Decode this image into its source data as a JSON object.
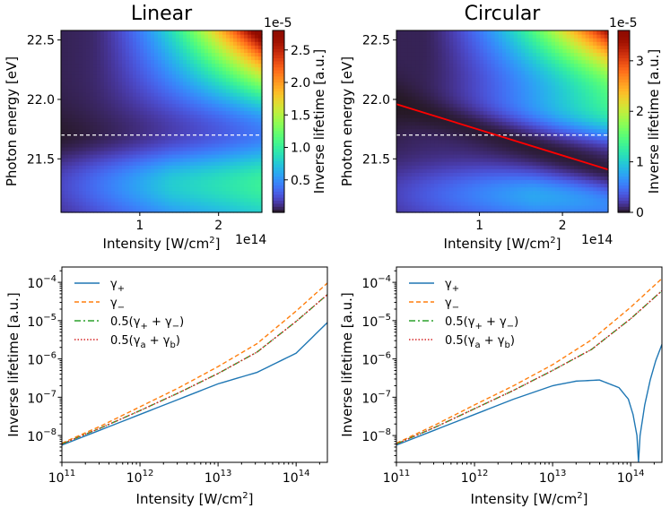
{
  "chart_data": [
    {
      "type": "heatmap",
      "title": "Linear",
      "xlabel": "Intensity [W/cm$^2$]",
      "xlabel_text": "Intensity [W/cm",
      "xlabel_sup": "2",
      "xlabel_end": "]",
      "ylabel": "Photon energy [eV]",
      "x_offset_text": "1e14",
      "xlim": [
        0,
        2.55
      ],
      "ylim": [
        21.05,
        22.58
      ],
      "xticks": [
        {
          "v": 1,
          "label": "1"
        },
        {
          "v": 2,
          "label": "2"
        }
      ],
      "yticks": [
        {
          "v": 21.5,
          "label": "21.5"
        },
        {
          "v": 22.0,
          "label": "22.0"
        },
        {
          "v": 22.5,
          "label": "22.5"
        }
      ],
      "dashed_line_y": 21.7,
      "colorbar": {
        "label": "Inverse lifetime [a.u.]",
        "offset_text": "1e-5",
        "range": [
          0,
          2.8
        ],
        "ticks": [
          "0.5",
          "1.0",
          "1.5",
          "2.0",
          "2.5"
        ],
        "tick_values": [
          0.5,
          1.0,
          1.5,
          2.0,
          2.5
        ],
        "colormap": "turbo"
      }
    },
    {
      "type": "heatmap",
      "title": "Circular",
      "xlabel": "Intensity [W/cm$^2$]",
      "xlabel_text": "Intensity [W/cm",
      "xlabel_sup": "2",
      "xlabel_end": "]",
      "ylabel": "Photon energy [eV]",
      "x_offset_text": "1e14",
      "xlim": [
        0,
        2.55
      ],
      "ylim": [
        21.05,
        22.58
      ],
      "xticks": [
        {
          "v": 1,
          "label": "1"
        },
        {
          "v": 2,
          "label": "2"
        }
      ],
      "yticks": [
        {
          "v": 21.5,
          "label": "21.5"
        },
        {
          "v": 22.0,
          "label": "22.0"
        },
        {
          "v": 22.5,
          "label": "22.5"
        }
      ],
      "dashed_line_y": 21.7,
      "red_line": {
        "x": [
          0,
          2.55
        ],
        "y": [
          21.96,
          21.41
        ]
      },
      "colorbar": {
        "label": "Inverse lifetime [a.u.]",
        "offset_text": "1e-5",
        "range": [
          0,
          3.6
        ],
        "ticks": [
          "0",
          "1",
          "2",
          "3"
        ],
        "tick_values": [
          0,
          1,
          2,
          3
        ],
        "colormap": "turbo"
      }
    },
    {
      "type": "line",
      "xscale": "log",
      "yscale": "log",
      "xlabel": "Intensity [W/cm$^2$]",
      "xlabel_text": "Intensity [W/cm",
      "xlabel_sup": "2",
      "xlabel_end": "]",
      "ylabel": "Inverse lifetime [a.u.]",
      "xlim_log10": [
        11,
        14.4
      ],
      "ylim_log10": [
        -8.7,
        -3.6
      ],
      "xticks": [
        {
          "e": 11,
          "label": "10",
          "sup": "11"
        },
        {
          "e": 12,
          "label": "10",
          "sup": "12"
        },
        {
          "e": 13,
          "label": "10",
          "sup": "13"
        },
        {
          "e": 14,
          "label": "10",
          "sup": "14"
        }
      ],
      "yticks": [
        {
          "e": -8,
          "label": "10",
          "sup": "−8"
        },
        {
          "e": -7,
          "label": "10",
          "sup": "−7"
        },
        {
          "e": -6,
          "label": "10",
          "sup": "−6"
        },
        {
          "e": -5,
          "label": "10",
          "sup": "−5"
        },
        {
          "e": -4,
          "label": "10",
          "sup": "−4"
        }
      ],
      "legend": {
        "placement": "top-left",
        "entries": [
          {
            "pre": "γ",
            "sub": "+",
            "post": ""
          },
          {
            "pre": "γ",
            "sub": "−",
            "post": ""
          },
          {
            "pre": "0.5(γ",
            "sub": "+",
            "mid": " + γ",
            "sub2": "−",
            "post": ")"
          },
          {
            "pre": "0.5(γ",
            "sub": "a",
            "mid": " + γ",
            "sub2": "b",
            "post": ")"
          }
        ]
      },
      "series": [
        {
          "name": "γ+",
          "color": "#1f77b4",
          "style": "solid",
          "x_log10": [
            11,
            11.5,
            12,
            12.5,
            13,
            13.5,
            14,
            14.4
          ],
          "y_log10": [
            -8.25,
            -7.85,
            -7.45,
            -7.05,
            -6.65,
            -6.35,
            -5.85,
            -5.05
          ]
        },
        {
          "name": "γ−",
          "color": "#ff7f0e",
          "style": "dashed",
          "x_log10": [
            11,
            11.5,
            12,
            12.5,
            13,
            13.5,
            14,
            14.4
          ],
          "y_log10": [
            -8.2,
            -7.75,
            -7.25,
            -6.75,
            -6.2,
            -5.6,
            -4.75,
            -4.02
          ]
        },
        {
          "name": "0.5(γ+ + γ−)",
          "color": "#2ca02c",
          "style": "dashdot",
          "x_log10": [
            11,
            11.5,
            12,
            12.5,
            13,
            13.5,
            14,
            14.4
          ],
          "y_log10": [
            -8.22,
            -7.8,
            -7.35,
            -6.88,
            -6.38,
            -5.82,
            -5.02,
            -4.32
          ]
        },
        {
          "name": "0.5(γa + γb)",
          "color": "#d62728",
          "style": "dotted",
          "x_log10": [
            11,
            11.5,
            12,
            12.5,
            13,
            13.5,
            14,
            14.4
          ],
          "y_log10": [
            -8.22,
            -7.8,
            -7.35,
            -6.88,
            -6.38,
            -5.82,
            -5.02,
            -4.32
          ]
        }
      ]
    },
    {
      "type": "line",
      "xscale": "log",
      "yscale": "log",
      "xlabel": "Intensity [W/cm$^2$]",
      "xlabel_text": "Intensity [W/cm",
      "xlabel_sup": "2",
      "xlabel_end": "]",
      "ylabel": "Inverse lifetime [a.u.]",
      "xlim_log10": [
        11,
        14.4
      ],
      "ylim_log10": [
        -8.7,
        -3.6
      ],
      "xticks": [
        {
          "e": 11,
          "label": "10",
          "sup": "11"
        },
        {
          "e": 12,
          "label": "10",
          "sup": "12"
        },
        {
          "e": 13,
          "label": "10",
          "sup": "13"
        },
        {
          "e": 14,
          "label": "10",
          "sup": "14"
        }
      ],
      "yticks": [
        {
          "e": -8,
          "label": "10",
          "sup": "−8"
        },
        {
          "e": -7,
          "label": "10",
          "sup": "−7"
        },
        {
          "e": -6,
          "label": "10",
          "sup": "−6"
        },
        {
          "e": -5,
          "label": "10",
          "sup": "−5"
        },
        {
          "e": -4,
          "label": "10",
          "sup": "−4"
        }
      ],
      "legend": {
        "placement": "top-left",
        "entries": [
          {
            "pre": "γ",
            "sub": "+",
            "post": ""
          },
          {
            "pre": "γ",
            "sub": "−",
            "post": ""
          },
          {
            "pre": "0.5(γ",
            "sub": "+",
            "mid": " + γ",
            "sub2": "−",
            "post": ")"
          },
          {
            "pre": "0.5(γ",
            "sub": "a",
            "mid": " + γ",
            "sub2": "b",
            "post": ")"
          }
        ]
      },
      "series": [
        {
          "name": "γ+",
          "color": "#1f77b4",
          "style": "solid",
          "x_log10": [
            11,
            11.5,
            12,
            12.5,
            13,
            13.3,
            13.6,
            13.85,
            13.97,
            14.03,
            14.08,
            14.1,
            14.12,
            14.18,
            14.25,
            14.32,
            14.4
          ],
          "y_log10": [
            -8.25,
            -7.85,
            -7.45,
            -7.05,
            -6.7,
            -6.58,
            -6.55,
            -6.75,
            -7.05,
            -7.45,
            -8.0,
            -8.7,
            -8.0,
            -7.2,
            -6.55,
            -6.05,
            -5.62
          ]
        },
        {
          "name": "γ−",
          "color": "#ff7f0e",
          "style": "dashed",
          "x_log10": [
            11,
            11.5,
            12,
            12.5,
            13,
            13.5,
            14,
            14.4
          ],
          "y_log10": [
            -8.2,
            -7.72,
            -7.2,
            -6.7,
            -6.15,
            -5.5,
            -4.65,
            -3.9
          ]
        },
        {
          "name": "0.5(γ+ + γ−)",
          "color": "#2ca02c",
          "style": "dashdot",
          "x_log10": [
            11,
            11.5,
            12,
            12.5,
            13,
            13.5,
            14,
            14.4
          ],
          "y_log10": [
            -8.22,
            -7.78,
            -7.3,
            -6.82,
            -6.3,
            -5.75,
            -4.95,
            -4.22
          ]
        },
        {
          "name": "0.5(γa + γb)",
          "color": "#d62728",
          "style": "dotted",
          "x_log10": [
            11,
            11.5,
            12,
            12.5,
            13,
            13.5,
            14,
            14.4
          ],
          "y_log10": [
            -8.22,
            -7.78,
            -7.3,
            -6.82,
            -6.3,
            -5.75,
            -4.95,
            -4.22
          ]
        }
      ]
    }
  ]
}
